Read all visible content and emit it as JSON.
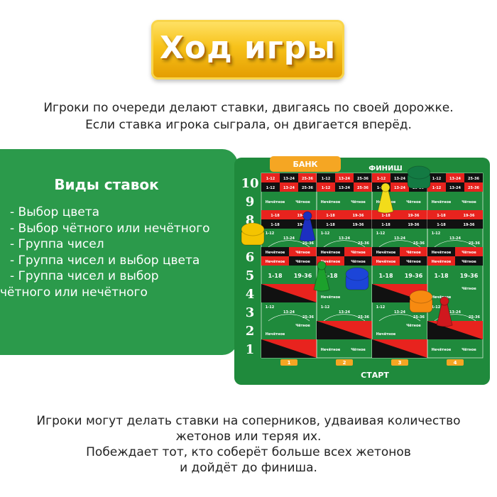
{
  "title": "Ход игры",
  "intro": [
    "Игроки по очереди делают ставки, двигаясь по своей дорожке.",
    "Если ставка игрока сыграла, он двигается вперёд."
  ],
  "bet_types": {
    "heading": "Виды ставок",
    "items": [
      "- Выбор цвета",
      "- Выбор чётного или нечётного",
      "- Группа чисел",
      "- Группа чисел и выбор цвета",
      "- Группа чисел и выбор",
      "чётного или нечётного"
    ]
  },
  "board": {
    "bank_label": "БАНК",
    "finish_label": "ФИНИШ",
    "start_label": "СТАРТ",
    "row_numbers": [
      "1",
      "2",
      "3",
      "4",
      "5",
      "6",
      "7",
      "8",
      "9",
      "10"
    ],
    "lane_numbers": [
      "1",
      "2",
      "3",
      "4"
    ],
    "labels": {
      "odd": "Нечётное",
      "even": "Чётное",
      "dozens": [
        "1-12",
        "13-24",
        "25-36"
      ],
      "halves": [
        "1-18",
        "19-36"
      ]
    },
    "colors": {
      "felt": "#1f8a3c",
      "red": "#e8231e",
      "black": "#111111",
      "bank": "#f5a623"
    },
    "pieces": [
      {
        "type": "chips",
        "color": "#f4c400"
      },
      {
        "type": "pawn",
        "color": "#1c2fc0"
      },
      {
        "type": "pawn",
        "color": "#f2dc1a"
      },
      {
        "type": "chips",
        "color": "#137a43"
      },
      {
        "type": "pawn",
        "color": "#1ca12c"
      },
      {
        "type": "chips",
        "color": "#1c45d8"
      },
      {
        "type": "chips",
        "color": "#f78a10"
      },
      {
        "type": "pawn",
        "color": "#d0181e"
      }
    ]
  },
  "outro": [
    "Игроки могут делать ставки на соперников,  удваивая количество",
    "жетонов или теряя их.",
    "Побеждает тот, кто соберёт больше всех жетонов",
    "и дойдёт до финиша."
  ]
}
